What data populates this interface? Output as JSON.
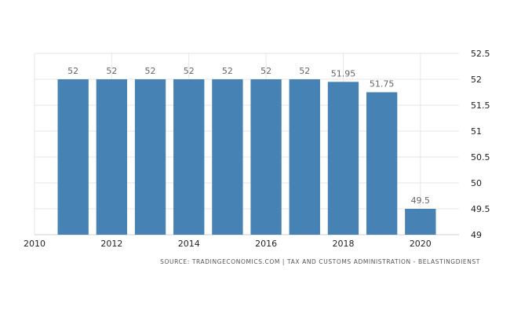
{
  "chart_data": {
    "type": "bar",
    "x": [
      2011,
      2012,
      2013,
      2014,
      2015,
      2016,
      2017,
      2018,
      2019,
      2020
    ],
    "values": [
      52,
      52,
      52,
      52,
      52,
      52,
      52,
      51.95,
      51.75,
      49.5
    ],
    "value_labels": [
      "52",
      "52",
      "52",
      "52",
      "52",
      "52",
      "52",
      "51.95",
      "51.75",
      "49.5"
    ],
    "x_ticks": [
      "2010",
      "2012",
      "2014",
      "2016",
      "2018",
      "2020"
    ],
    "y_ticks": [
      "49",
      "49.5",
      "50",
      "50.5",
      "51",
      "51.5",
      "52",
      "52.5"
    ],
    "ylim": [
      49,
      52.5
    ],
    "xlim": [
      2010,
      2021
    ],
    "grid": true,
    "bar_color": "#4682b4",
    "grid_color": "#e6e6e6"
  },
  "footer": {
    "source": "SOURCE: TRADINGECONOMICS.COM | TAX AND CUSTOMS ADMINISTRATION - BELASTINGDIENST"
  }
}
